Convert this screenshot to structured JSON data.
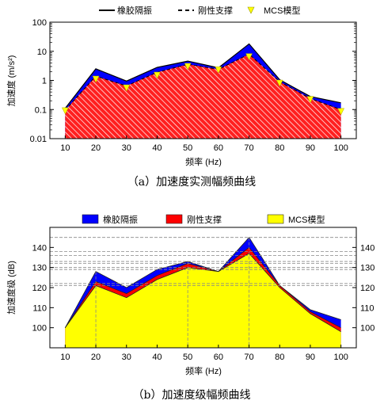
{
  "chart_data": [
    {
      "type": "area",
      "title": "",
      "xlabel": "频率 (Hz)",
      "ylabel": "加速度 (m/s²)",
      "yscale": "log",
      "ylim": [
        0.01,
        100
      ],
      "xlim": [
        5,
        105
      ],
      "x": [
        10,
        20,
        30,
        40,
        50,
        60,
        70,
        80,
        90,
        100
      ],
      "xticks": [
        "10",
        "20",
        "30",
        "40",
        "50",
        "60",
        "70",
        "80",
        "90",
        "100"
      ],
      "yticks": [
        "0.01",
        "0.1",
        "1",
        "10",
        "100"
      ],
      "legend_position": "top",
      "series": [
        {
          "name": "橡胶隔振",
          "legend_marker": "solid line",
          "fill": "blue",
          "values": [
            0.11,
            2.5,
            0.95,
            2.8,
            4.6,
            2.7,
            18.0,
            1.05,
            0.28,
            0.17
          ]
        },
        {
          "name": "刚性支撑",
          "legend_marker": "dashed line",
          "fill": "red hatched",
          "values": [
            0.095,
            1.4,
            0.65,
            1.9,
            3.6,
            2.4,
            8.0,
            0.9,
            0.24,
            0.1
          ]
        },
        {
          "name": "MCS模型",
          "legend_marker": "yellow triangle",
          "values": [
            0.09,
            1.1,
            0.55,
            1.5,
            3.0,
            2.3,
            6.5,
            0.8,
            0.22,
            0.085
          ]
        }
      ],
      "caption": "（a）加速度实测幅频曲线"
    },
    {
      "type": "area",
      "title": "",
      "xlabel": "频率 (Hz)",
      "ylabel": "加速度级 (dB)",
      "ylim": [
        90,
        150
      ],
      "xlim": [
        5,
        105
      ],
      "x": [
        10,
        20,
        30,
        40,
        50,
        60,
        70,
        80,
        90,
        100
      ],
      "xticks": [
        "10",
        "20",
        "30",
        "40",
        "50",
        "60",
        "70",
        "80",
        "90",
        "100"
      ],
      "yticks": [
        "100",
        "110",
        "120",
        "130",
        "140"
      ],
      "right_yticks": [
        "100",
        "110",
        "120",
        "130",
        "140"
      ],
      "legend_position": "top",
      "series": [
        {
          "name": "橡胶隔振",
          "color": "#0000ff",
          "values": [
            100,
            128,
            120,
            129,
            133,
            128,
            145,
            121,
            109,
            104
          ]
        },
        {
          "name": "刚性支撑",
          "color": "#ff0000",
          "values": [
            100,
            123,
            117,
            126,
            132,
            128,
            140,
            121,
            108,
            100
          ]
        },
        {
          "name": "MCS模型",
          "color": "#ffff00",
          "values": [
            100,
            121,
            115,
            124,
            130,
            128,
            137,
            120,
            107,
            98
          ]
        }
      ],
      "reference_lines_db": [
        145,
        138,
        136,
        133,
        132,
        130,
        129,
        122,
        121
      ],
      "reference_lines_x": [
        20,
        50,
        70
      ],
      "caption": "（b）加速度级幅频曲线"
    }
  ]
}
